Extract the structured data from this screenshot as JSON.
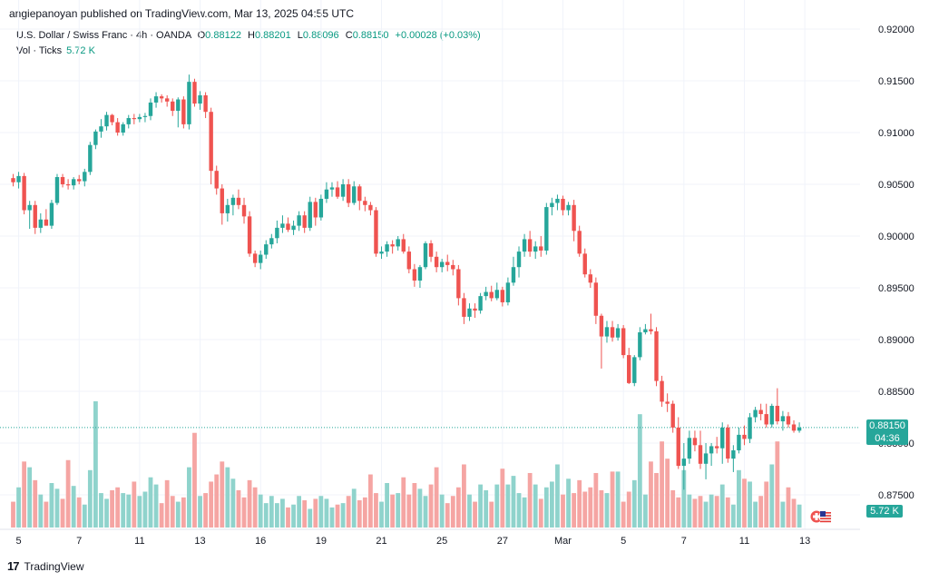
{
  "header": {
    "publisher_line": "angiepanoyan published on TradingView.com, Mar 13, 2025 04:55 UTC"
  },
  "legend": {
    "symbol": "U.S. Dollar / Swiss Franc · 4h · OANDA",
    "open_label": "O",
    "open": "0.88122",
    "high_label": "H",
    "high": "0.88201",
    "low_label": "L",
    "low": "0.88096",
    "close_label": "C",
    "close": "0.88150",
    "change": "+0.00028 (+0.03%)",
    "vol_label": "Vol · Ticks",
    "vol_value": "5.72 K"
  },
  "price_badge": {
    "price": "0.88150",
    "countdown": "04:36"
  },
  "volume_badge": {
    "value": "5.72 K"
  },
  "footer": {
    "brand": "TradingView"
  },
  "colors": {
    "up": "#26a69a",
    "down": "#ef5350",
    "up_volume": "#8fd3cc",
    "down_volume": "#f5a5a3",
    "grid": "#f0f3fa"
  },
  "chart_data": {
    "type": "candlestick",
    "symbol": "USDCHF",
    "timeframe": "4h",
    "y_ticks": [
      "0.92000",
      "0.91500",
      "0.91000",
      "0.90500",
      "0.90000",
      "0.89500",
      "0.89000",
      "0.88500",
      "0.88000",
      "0.87500"
    ],
    "ylim": [
      0.8735,
      0.921
    ],
    "x_ticks": [
      {
        "label": "5",
        "index": 1
      },
      {
        "label": "7",
        "index": 12
      },
      {
        "label": "11",
        "index": 23
      },
      {
        "label": "13",
        "index": 34
      },
      {
        "label": "16",
        "index": 45
      },
      {
        "label": "19",
        "index": 56
      },
      {
        "label": "21",
        "index": 67
      },
      {
        "label": "25",
        "index": 78
      },
      {
        "label": "27",
        "index": 89
      },
      {
        "label": "Mar",
        "index": 100
      },
      {
        "label": "5",
        "index": 111
      },
      {
        "label": "7",
        "index": 122
      },
      {
        "label": "11",
        "index": 133
      },
      {
        "label": "13",
        "index": 144
      }
    ],
    "last_close": 0.8815,
    "candles": [
      [
        0.9056,
        0.906,
        0.9048,
        0.9052,
        18
      ],
      [
        0.9052,
        0.9062,
        0.9046,
        0.9058,
        28
      ],
      [
        0.9058,
        0.9061,
        0.9021,
        0.9025,
        46
      ],
      [
        0.9025,
        0.9034,
        0.9007,
        0.903,
        42
      ],
      [
        0.903,
        0.9034,
        0.9002,
        0.9008,
        33
      ],
      [
        0.9008,
        0.9022,
        0.9003,
        0.9016,
        23
      ],
      [
        0.9016,
        0.9026,
        0.901,
        0.901,
        18
      ],
      [
        0.901,
        0.9035,
        0.9007,
        0.9032,
        31
      ],
      [
        0.9032,
        0.906,
        0.903,
        0.9057,
        27
      ],
      [
        0.9057,
        0.906,
        0.9047,
        0.905,
        20
      ],
      [
        0.905,
        0.9055,
        0.9045,
        0.9049,
        47
      ],
      [
        0.9049,
        0.9057,
        0.9045,
        0.9055,
        29
      ],
      [
        0.9055,
        0.9059,
        0.905,
        0.9053,
        21
      ],
      [
        0.9053,
        0.9065,
        0.9048,
        0.9062,
        16
      ],
      [
        0.9062,
        0.9091,
        0.9059,
        0.9088,
        40
      ],
      [
        0.9088,
        0.9103,
        0.9084,
        0.9101,
        88
      ],
      [
        0.9101,
        0.9113,
        0.9095,
        0.9106,
        24
      ],
      [
        0.9106,
        0.912,
        0.9102,
        0.9117,
        20
      ],
      [
        0.9117,
        0.9118,
        0.9107,
        0.911,
        26
      ],
      [
        0.911,
        0.9114,
        0.9097,
        0.91,
        28
      ],
      [
        0.91,
        0.911,
        0.9097,
        0.9108,
        24
      ],
      [
        0.9108,
        0.9117,
        0.9104,
        0.9114,
        23
      ],
      [
        0.9114,
        0.9118,
        0.9108,
        0.9113,
        32
      ],
      [
        0.9113,
        0.9118,
        0.911,
        0.9115,
        22
      ],
      [
        0.9115,
        0.9119,
        0.911,
        0.9116,
        25
      ],
      [
        0.9116,
        0.9133,
        0.9112,
        0.9129,
        35
      ],
      [
        0.9129,
        0.9139,
        0.9124,
        0.9135,
        30
      ],
      [
        0.9135,
        0.9137,
        0.9129,
        0.9133,
        17
      ],
      [
        0.9133,
        0.9136,
        0.9125,
        0.913,
        33
      ],
      [
        0.913,
        0.9133,
        0.9116,
        0.9121,
        22
      ],
      [
        0.9121,
        0.9134,
        0.9105,
        0.9132,
        18
      ],
      [
        0.9132,
        0.9135,
        0.9104,
        0.9108,
        21
      ],
      [
        0.9108,
        0.9156,
        0.9103,
        0.9149,
        42
      ],
      [
        0.9149,
        0.9152,
        0.9125,
        0.9128,
        66
      ],
      [
        0.9128,
        0.914,
        0.9122,
        0.9136,
        22
      ],
      [
        0.9136,
        0.9139,
        0.9114,
        0.912,
        24
      ],
      [
        0.912,
        0.9124,
        0.905,
        0.9063,
        32
      ],
      [
        0.9063,
        0.9068,
        0.904,
        0.9046,
        37
      ],
      [
        0.9046,
        0.905,
        0.9011,
        0.9022,
        46
      ],
      [
        0.9022,
        0.9036,
        0.9014,
        0.903,
        42
      ],
      [
        0.903,
        0.904,
        0.902,
        0.9037,
        34
      ],
      [
        0.9037,
        0.9045,
        0.9026,
        0.903,
        26
      ],
      [
        0.903,
        0.9037,
        0.9012,
        0.9019,
        21
      ],
      [
        0.9019,
        0.9024,
        0.898,
        0.8983,
        33
      ],
      [
        0.8983,
        0.8986,
        0.897,
        0.8974,
        28
      ],
      [
        0.8974,
        0.8986,
        0.8968,
        0.8982,
        23
      ],
      [
        0.8982,
        0.8996,
        0.8978,
        0.8992,
        17
      ],
      [
        0.8992,
        0.9002,
        0.8988,
        0.8998,
        22
      ],
      [
        0.8998,
        0.9015,
        0.8993,
        0.9008,
        17
      ],
      [
        0.9008,
        0.902,
        0.9003,
        0.9012,
        20
      ],
      [
        0.9012,
        0.9018,
        0.9004,
        0.9006,
        14
      ],
      [
        0.9006,
        0.9015,
        0.9001,
        0.901,
        16
      ],
      [
        0.901,
        0.9024,
        0.9005,
        0.902,
        22
      ],
      [
        0.902,
        0.9024,
        0.9003,
        0.9008,
        19
      ],
      [
        0.9008,
        0.9038,
        0.9005,
        0.9033,
        13
      ],
      [
        0.9033,
        0.9037,
        0.901,
        0.9018,
        20
      ],
      [
        0.9018,
        0.904,
        0.9015,
        0.9036,
        22
      ],
      [
        0.9036,
        0.9052,
        0.9032,
        0.9045,
        20
      ],
      [
        0.9045,
        0.9052,
        0.9038,
        0.9047,
        14
      ],
      [
        0.9047,
        0.9053,
        0.9036,
        0.9038,
        16
      ],
      [
        0.9038,
        0.9055,
        0.9034,
        0.905,
        17
      ],
      [
        0.905,
        0.9055,
        0.9028,
        0.9032,
        22
      ],
      [
        0.9032,
        0.9053,
        0.903,
        0.9048,
        27
      ],
      [
        0.9048,
        0.905,
        0.9025,
        0.9034,
        19
      ],
      [
        0.9034,
        0.9038,
        0.9024,
        0.903,
        21
      ],
      [
        0.903,
        0.9033,
        0.902,
        0.9025,
        37
      ],
      [
        0.9025,
        0.9028,
        0.898,
        0.8983,
        24
      ],
      [
        0.8983,
        0.899,
        0.8978,
        0.8985,
        18
      ],
      [
        0.8985,
        0.8995,
        0.898,
        0.8992,
        31
      ],
      [
        0.8992,
        0.8996,
        0.8983,
        0.899,
        23
      ],
      [
        0.899,
        0.9,
        0.8986,
        0.8997,
        24
      ],
      [
        0.8997,
        0.9002,
        0.8983,
        0.8985,
        35
      ],
      [
        0.8985,
        0.899,
        0.8964,
        0.8968,
        23
      ],
      [
        0.8968,
        0.8973,
        0.8951,
        0.8957,
        31
      ],
      [
        0.8957,
        0.8972,
        0.895,
        0.897,
        27
      ],
      [
        0.897,
        0.8995,
        0.8968,
        0.8993,
        22
      ],
      [
        0.8993,
        0.8996,
        0.8975,
        0.898,
        30
      ],
      [
        0.898,
        0.8985,
        0.8965,
        0.897,
        42
      ],
      [
        0.897,
        0.8978,
        0.8965,
        0.8975,
        23
      ],
      [
        0.8975,
        0.8982,
        0.8966,
        0.8972,
        17
      ],
      [
        0.8972,
        0.8977,
        0.8962,
        0.8968,
        22
      ],
      [
        0.8968,
        0.8972,
        0.8933,
        0.894,
        28
      ],
      [
        0.894,
        0.8945,
        0.8915,
        0.8922,
        44
      ],
      [
        0.8922,
        0.8935,
        0.8918,
        0.893,
        23
      ],
      [
        0.893,
        0.8935,
        0.8921,
        0.8928,
        18
      ],
      [
        0.8928,
        0.8945,
        0.8925,
        0.8942,
        30
      ],
      [
        0.8942,
        0.8951,
        0.8938,
        0.8946,
        26
      ],
      [
        0.8946,
        0.8952,
        0.8937,
        0.894,
        18
      ],
      [
        0.894,
        0.8955,
        0.8938,
        0.8948,
        30
      ],
      [
        0.8948,
        0.8951,
        0.8932,
        0.8936,
        41
      ],
      [
        0.8936,
        0.896,
        0.8933,
        0.8955,
        30
      ],
      [
        0.8955,
        0.898,
        0.8952,
        0.897,
        36
      ],
      [
        0.897,
        0.899,
        0.896,
        0.8985,
        24
      ],
      [
        0.8985,
        0.9002,
        0.898,
        0.8997,
        21
      ],
      [
        0.8997,
        0.9005,
        0.898,
        0.8985,
        38
      ],
      [
        0.8985,
        0.8995,
        0.8978,
        0.899,
        30
      ],
      [
        0.899,
        0.9,
        0.898,
        0.8986,
        20
      ],
      [
        0.8986,
        0.9032,
        0.8982,
        0.9028,
        28
      ],
      [
        0.9028,
        0.9037,
        0.902,
        0.9032,
        32
      ],
      [
        0.9032,
        0.904,
        0.9025,
        0.9036,
        44
      ],
      [
        0.9036,
        0.9039,
        0.902,
        0.9025,
        23
      ],
      [
        0.9025,
        0.9033,
        0.902,
        0.903,
        34
      ],
      [
        0.903,
        0.9035,
        0.8995,
        0.9005,
        24
      ],
      [
        0.9005,
        0.901,
        0.898,
        0.8983,
        33
      ],
      [
        0.8983,
        0.8988,
        0.896,
        0.8963,
        25
      ],
      [
        0.8963,
        0.8968,
        0.895,
        0.8955,
        28
      ],
      [
        0.8955,
        0.896,
        0.8915,
        0.8923,
        38
      ],
      [
        0.8923,
        0.8925,
        0.8872,
        0.8903,
        26
      ],
      [
        0.8903,
        0.8918,
        0.8897,
        0.8912,
        24
      ],
      [
        0.8912,
        0.8918,
        0.8898,
        0.8902,
        39
      ],
      [
        0.8902,
        0.8915,
        0.8899,
        0.8911,
        39
      ],
      [
        0.8911,
        0.8914,
        0.8882,
        0.8885,
        18
      ],
      [
        0.8885,
        0.8892,
        0.8857,
        0.8858,
        25
      ],
      [
        0.8858,
        0.8885,
        0.8855,
        0.8883,
        33
      ],
      [
        0.8883,
        0.8912,
        0.888,
        0.8907,
        79
      ],
      [
        0.8907,
        0.8915,
        0.8905,
        0.891,
        23
      ],
      [
        0.891,
        0.8925,
        0.8905,
        0.8908,
        46
      ],
      [
        0.8908,
        0.8912,
        0.8855,
        0.886,
        38
      ],
      [
        0.886,
        0.8865,
        0.8835,
        0.884,
        60
      ],
      [
        0.884,
        0.8848,
        0.883,
        0.8838,
        48
      ],
      [
        0.8838,
        0.8841,
        0.881,
        0.8815,
        26
      ],
      [
        0.8815,
        0.8825,
        0.8775,
        0.8778,
        21
      ],
      [
        0.8778,
        0.88,
        0.8755,
        0.8785,
        40
      ],
      [
        0.8785,
        0.8812,
        0.878,
        0.8805,
        23
      ],
      [
        0.8805,
        0.8812,
        0.8792,
        0.8798,
        20
      ],
      [
        0.8798,
        0.8812,
        0.8775,
        0.878,
        22
      ],
      [
        0.878,
        0.88,
        0.8765,
        0.879,
        18
      ],
      [
        0.879,
        0.88,
        0.8778,
        0.8797,
        23
      ],
      [
        0.8797,
        0.8806,
        0.879,
        0.8795,
        22
      ],
      [
        0.8795,
        0.882,
        0.878,
        0.8815,
        30
      ],
      [
        0.8815,
        0.8818,
        0.8781,
        0.8785,
        21
      ],
      [
        0.8785,
        0.8798,
        0.8772,
        0.8793,
        16
      ],
      [
        0.8793,
        0.8815,
        0.879,
        0.8808,
        40
      ],
      [
        0.8808,
        0.8817,
        0.8798,
        0.8804,
        34
      ],
      [
        0.8804,
        0.8829,
        0.88,
        0.8825,
        32
      ],
      [
        0.8825,
        0.8835,
        0.882,
        0.8832,
        18
      ],
      [
        0.8832,
        0.8838,
        0.8822,
        0.8828,
        22
      ],
      [
        0.8828,
        0.8838,
        0.8815,
        0.8818,
        32
      ],
      [
        0.8818,
        0.8838,
        0.8815,
        0.8836,
        44
      ],
      [
        0.8836,
        0.8853,
        0.8818,
        0.8821,
        60
      ],
      [
        0.8821,
        0.8831,
        0.8812,
        0.8826,
        18
      ],
      [
        0.8826,
        0.883,
        0.8815,
        0.8818,
        28
      ],
      [
        0.8818,
        0.8822,
        0.881,
        0.8812,
        20
      ],
      [
        0.8812,
        0.882,
        0.881,
        0.8815,
        16
      ]
    ]
  }
}
